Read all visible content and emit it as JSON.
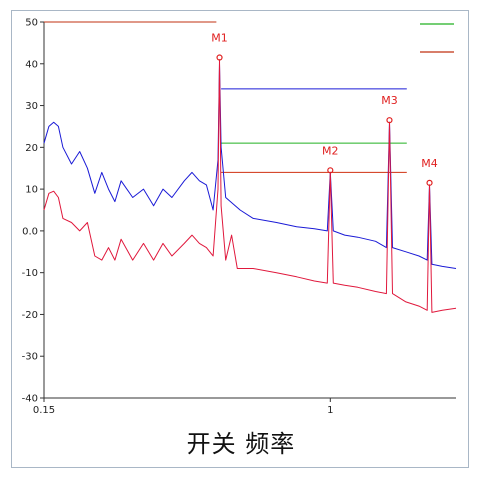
{
  "chart_data": {
    "type": "line",
    "title": "开关 频率",
    "x_scale": "log",
    "xlim": [
      0.15,
      2.3
    ],
    "ylim": [
      -40,
      50
    ],
    "y_ticks": [
      50,
      40,
      30,
      20,
      10,
      0,
      -10,
      -20,
      -30,
      -40
    ],
    "y_tick_labels": [
      "50",
      "40",
      "30",
      "20",
      "10",
      "0.0",
      "-10",
      "-20",
      "-30",
      "-40"
    ],
    "x_ticks": [
      0.15,
      1
    ],
    "x_tick_labels": [
      "0.15",
      "1"
    ],
    "grid": false,
    "series": [
      {
        "color": "#1a1ad6",
        "points": [
          [
            0.15,
            21
          ],
          [
            0.155,
            25
          ],
          [
            0.16,
            26
          ],
          [
            0.165,
            25
          ],
          [
            0.17,
            20
          ],
          [
            0.18,
            16
          ],
          [
            0.19,
            19
          ],
          [
            0.2,
            15
          ],
          [
            0.21,
            9
          ],
          [
            0.22,
            14
          ],
          [
            0.23,
            10
          ],
          [
            0.24,
            7
          ],
          [
            0.25,
            12
          ],
          [
            0.27,
            8
          ],
          [
            0.29,
            10
          ],
          [
            0.31,
            6
          ],
          [
            0.33,
            10
          ],
          [
            0.35,
            8
          ],
          [
            0.38,
            12
          ],
          [
            0.4,
            14
          ],
          [
            0.42,
            12
          ],
          [
            0.44,
            11
          ],
          [
            0.46,
            5
          ],
          [
            0.475,
            17
          ],
          [
            0.48,
            40
          ],
          [
            0.485,
            20
          ],
          [
            0.5,
            8
          ],
          [
            0.55,
            5
          ],
          [
            0.6,
            3
          ],
          [
            0.7,
            2
          ],
          [
            0.8,
            1
          ],
          [
            0.9,
            0.5
          ],
          [
            0.98,
            0
          ],
          [
            1.0,
            14
          ],
          [
            1.02,
            0
          ],
          [
            1.1,
            -1
          ],
          [
            1.2,
            -1.5
          ],
          [
            1.35,
            -2.5
          ],
          [
            1.45,
            -4
          ],
          [
            1.48,
            26
          ],
          [
            1.51,
            -4
          ],
          [
            1.65,
            -5
          ],
          [
            1.8,
            -6
          ],
          [
            1.9,
            -7
          ],
          [
            1.93,
            11
          ],
          [
            1.96,
            -8
          ],
          [
            2.1,
            -8.5
          ],
          [
            2.3,
            -9
          ]
        ]
      },
      {
        "color": "#e0183c",
        "points": [
          [
            0.15,
            5
          ],
          [
            0.155,
            9
          ],
          [
            0.16,
            9.5
          ],
          [
            0.165,
            8
          ],
          [
            0.17,
            3
          ],
          [
            0.18,
            2
          ],
          [
            0.19,
            0
          ],
          [
            0.2,
            2
          ],
          [
            0.21,
            -6
          ],
          [
            0.22,
            -7
          ],
          [
            0.23,
            -4
          ],
          [
            0.24,
            -7
          ],
          [
            0.25,
            -2
          ],
          [
            0.27,
            -7
          ],
          [
            0.29,
            -3
          ],
          [
            0.31,
            -7
          ],
          [
            0.33,
            -3
          ],
          [
            0.35,
            -6
          ],
          [
            0.38,
            -3
          ],
          [
            0.4,
            -1
          ],
          [
            0.42,
            -3
          ],
          [
            0.44,
            -4
          ],
          [
            0.46,
            -6
          ],
          [
            0.475,
            10
          ],
          [
            0.48,
            41
          ],
          [
            0.485,
            6
          ],
          [
            0.5,
            -7
          ],
          [
            0.52,
            -1
          ],
          [
            0.54,
            -9
          ],
          [
            0.6,
            -9
          ],
          [
            0.7,
            -10
          ],
          [
            0.8,
            -11
          ],
          [
            0.9,
            -12
          ],
          [
            0.98,
            -12.5
          ],
          [
            1.0,
            14
          ],
          [
            1.02,
            -12.5
          ],
          [
            1.1,
            -13
          ],
          [
            1.2,
            -13.5
          ],
          [
            1.35,
            -14.5
          ],
          [
            1.45,
            -15
          ],
          [
            1.48,
            26
          ],
          [
            1.51,
            -15
          ],
          [
            1.65,
            -17
          ],
          [
            1.8,
            -18
          ],
          [
            1.9,
            -19
          ],
          [
            1.93,
            11
          ],
          [
            1.96,
            -19.5
          ],
          [
            2.1,
            -19
          ],
          [
            2.3,
            -18.5
          ]
        ]
      }
    ],
    "markers": [
      {
        "label": "M1",
        "x": 0.48,
        "y": 41.5
      },
      {
        "label": "M2",
        "x": 1.0,
        "y": 14.5
      },
      {
        "label": "M3",
        "x": 1.48,
        "y": 26.5
      },
      {
        "label": "M4",
        "x": 1.93,
        "y": 11.5
      }
    ],
    "limit_lines": [
      {
        "color": "#c03010",
        "y": 50,
        "x_start": 0.15,
        "x_end": 0.47
      },
      {
        "color": "#1a1ad6",
        "y": 34,
        "x_start": 0.485,
        "x_end": 1.66
      },
      {
        "color": "#20b020",
        "y": 21,
        "x_start": 0.485,
        "x_end": 1.66
      },
      {
        "color": "#d03010",
        "y": 14,
        "x_start": 0.485,
        "x_end": 1.66
      }
    ],
    "legend_swatches": [
      {
        "color": "#20b020"
      },
      {
        "color": "#c03010"
      }
    ]
  }
}
